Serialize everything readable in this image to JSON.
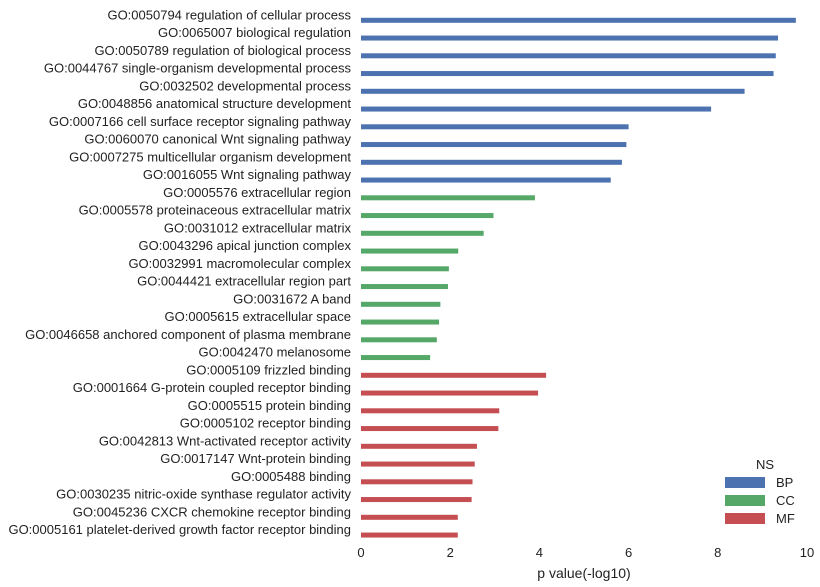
{
  "chart_data": {
    "type": "bar",
    "orientation": "horizontal",
    "xlabel": "p value(-log10)",
    "xlim": [
      0,
      10
    ],
    "xticks": [
      "0",
      "2",
      "4",
      "6",
      "8",
      "10"
    ],
    "grid": false,
    "legend": {
      "title": "NS",
      "placement": "bottom-right",
      "entries": [
        {
          "key": "BP",
          "label": "BP",
          "color": "#4c72b0"
        },
        {
          "key": "CC",
          "label": "CC",
          "color": "#55a868"
        },
        {
          "key": "MF",
          "label": "MF",
          "color": "#c44e52"
        }
      ]
    },
    "bars": [
      {
        "label": "GO:0050794 regulation of cellular process",
        "value": 9.75,
        "group": "BP"
      },
      {
        "label": "GO:0065007 biological regulation",
        "value": 9.35,
        "group": "BP"
      },
      {
        "label": "GO:0050789 regulation of biological process",
        "value": 9.3,
        "group": "BP"
      },
      {
        "label": "GO:0044767 single-organism developmental process",
        "value": 9.25,
        "group": "BP"
      },
      {
        "label": "GO:0032502 developmental process",
        "value": 8.6,
        "group": "BP"
      },
      {
        "label": "GO:0048856 anatomical structure development",
        "value": 7.85,
        "group": "BP"
      },
      {
        "label": "GO:0007166 cell surface receptor signaling pathway",
        "value": 6.0,
        "group": "BP"
      },
      {
        "label": "GO:0060070 canonical Wnt signaling pathway",
        "value": 5.95,
        "group": "BP"
      },
      {
        "label": "GO:0007275 multicellular organism development",
        "value": 5.85,
        "group": "BP"
      },
      {
        "label": "GO:0016055 Wnt signaling pathway",
        "value": 5.6,
        "group": "BP"
      },
      {
        "label": "GO:0005576 extracellular region",
        "value": 3.9,
        "group": "CC"
      },
      {
        "label": "GO:0005578 proteinaceous extracellular matrix",
        "value": 2.97,
        "group": "CC"
      },
      {
        "label": "GO:0031012 extracellular matrix",
        "value": 2.75,
        "group": "CC"
      },
      {
        "label": "GO:0043296 apical junction complex",
        "value": 2.18,
        "group": "CC"
      },
      {
        "label": "GO:0032991 macromolecular complex",
        "value": 1.97,
        "group": "CC"
      },
      {
        "label": "GO:0044421 extracellular region part",
        "value": 1.95,
        "group": "CC"
      },
      {
        "label": "GO:0031672 A band",
        "value": 1.78,
        "group": "CC"
      },
      {
        "label": "GO:0005615 extracellular space",
        "value": 1.75,
        "group": "CC"
      },
      {
        "label": "GO:0046658 anchored component of plasma membrane",
        "value": 1.7,
        "group": "CC"
      },
      {
        "label": "GO:0042470 melanosome",
        "value": 1.55,
        "group": "CC"
      },
      {
        "label": "GO:0005109 frizzled binding",
        "value": 4.15,
        "group": "MF"
      },
      {
        "label": "GO:0001664 G-protein coupled receptor binding",
        "value": 3.97,
        "group": "MF"
      },
      {
        "label": "GO:0005515 protein binding",
        "value": 3.1,
        "group": "MF"
      },
      {
        "label": "GO:0005102 receptor binding",
        "value": 3.08,
        "group": "MF"
      },
      {
        "label": "GO:0042813 Wnt-activated receptor activity",
        "value": 2.6,
        "group": "MF"
      },
      {
        "label": "GO:0017147 Wnt-protein binding",
        "value": 2.55,
        "group": "MF"
      },
      {
        "label": "GO:0005488 binding",
        "value": 2.5,
        "group": "MF"
      },
      {
        "label": "GO:0030235 nitric-oxide synthase regulator activity",
        "value": 2.48,
        "group": "MF"
      },
      {
        "label": "GO:0045236 CXCR chemokine receptor binding",
        "value": 2.17,
        "group": "MF"
      },
      {
        "label": "GO:0005161 platelet-derived growth factor receptor binding",
        "value": 2.17,
        "group": "MF"
      }
    ]
  }
}
